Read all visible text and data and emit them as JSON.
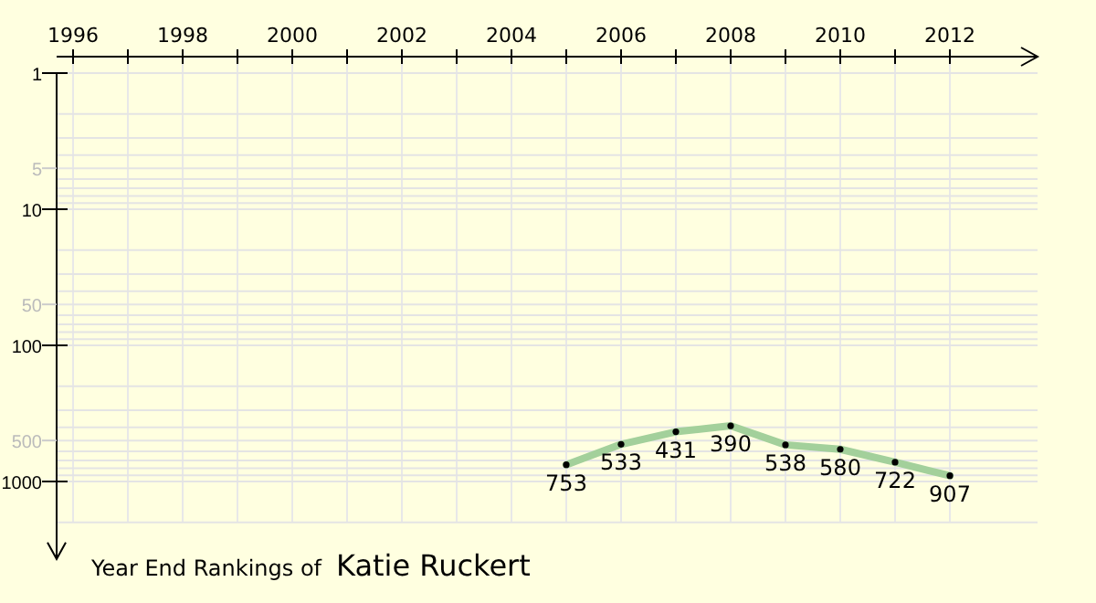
{
  "chart_data": {
    "type": "line",
    "title": "Year End Rankings of",
    "subtitle": "Katie Ruckert",
    "x": [
      2005,
      2006,
      2007,
      2008,
      2009,
      2010,
      2011,
      2012
    ],
    "series": [
      {
        "color": "#a3d09b",
        "values": [
          753,
          533,
          431,
          390,
          538,
          580,
          722,
          907
        ]
      }
    ],
    "xlim": [
      1996,
      2013.6
    ],
    "xticks": [
      1996,
      {
        "value": 1997,
        "label": null
      },
      1998,
      {
        "value": 1999,
        "label": null
      },
      2000,
      {
        "value": 2001,
        "label": null
      },
      2002,
      {
        "value": 2003,
        "label": null
      },
      2004,
      {
        "value": 2005,
        "label": null
      },
      2006,
      {
        "value": 2007,
        "label": null
      },
      2008,
      {
        "value": 2009,
        "label": null
      },
      2010,
      {
        "value": 2011,
        "label": null
      },
      2012
    ],
    "ylim": [
      2000,
      1
    ],
    "yticks": [
      1,
      5,
      10,
      50,
      100,
      500,
      1000
    ],
    "log": true,
    "grid": true,
    "data_labels": true,
    "marker": "circle"
  }
}
